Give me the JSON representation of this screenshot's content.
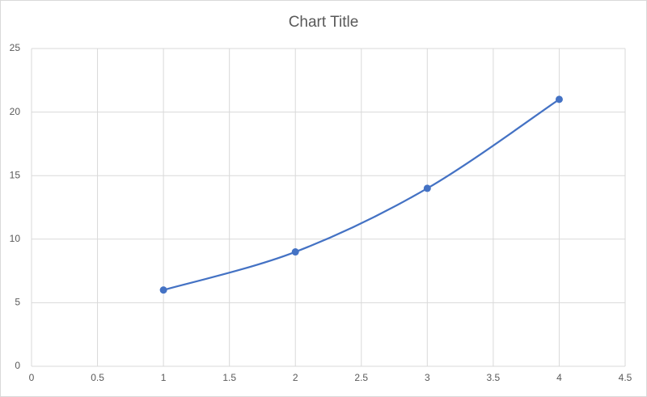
{
  "chart_data": {
    "type": "scatter-smooth",
    "title": "Chart Title",
    "x": [
      1,
      2,
      3,
      4
    ],
    "values": [
      6,
      9,
      14,
      21
    ],
    "color": "#4472c4",
    "xlim": [
      0,
      4.5
    ],
    "xticks": [
      0,
      0.5,
      1,
      1.5,
      2,
      2.5,
      3,
      3.5,
      4,
      4.5
    ],
    "ylim": [
      0,
      25
    ],
    "yticks": [
      0,
      5,
      10,
      15,
      20,
      25
    ],
    "grid": true
  }
}
